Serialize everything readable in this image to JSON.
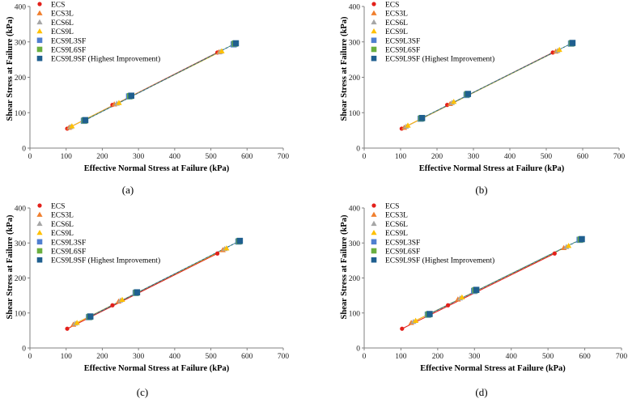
{
  "figure": {
    "panels": [
      "(a)",
      "(b)",
      "(c)",
      "(d)"
    ]
  },
  "colors": {
    "ECS": "#e3201b",
    "ECS3L": "#f07f2e",
    "ECS6L": "#a6a6a6",
    "ECS9L": "#ffc000",
    "ECS9L3SF": "#4f7fd0",
    "ECS9L6SF": "#6aaf3f",
    "ECS9L9SF": "#1f5f8f",
    "axis": "#808080",
    "text": "#000000"
  },
  "chart_data": [
    {
      "type": "scatter",
      "panel": "(a)",
      "title": "",
      "xlabel": "Effective Normal Stress at Failure (kPa)",
      "ylabel": "Shear Stress at Failure (kPa)",
      "xlim": [
        0,
        700
      ],
      "ylim": [
        0,
        400
      ],
      "xticks": [
        "0",
        "100",
        "200",
        "300",
        "400",
        "500",
        "600",
        "700"
      ],
      "yticks": [
        "0",
        "100",
        "200",
        "300",
        "400"
      ],
      "legend_position": "top-left",
      "series": [
        {
          "name": "ECS",
          "marker": "circle",
          "x": [
            103,
            228,
            518
          ],
          "y": [
            55,
            122,
            270
          ]
        },
        {
          "name": "ECS3L",
          "marker": "triangle",
          "x": [
            108,
            233,
            522
          ],
          "y": [
            58,
            124,
            271
          ]
        },
        {
          "name": "ECS6L",
          "marker": "triangle",
          "x": [
            112,
            240,
            526
          ],
          "y": [
            60,
            126,
            272
          ]
        },
        {
          "name": "ECS9L",
          "marker": "triangle",
          "x": [
            116,
            246,
            530
          ],
          "y": [
            62,
            128,
            274
          ]
        },
        {
          "name": "ECS9L3SF",
          "marker": "square",
          "x": [
            149,
            274,
            563
          ],
          "y": [
            77,
            146,
            293
          ]
        },
        {
          "name": "ECS9L6SF",
          "marker": "square",
          "x": [
            151,
            277,
            566
          ],
          "y": [
            78,
            147,
            295
          ]
        },
        {
          "name": "ECS9L9SF (Highest Improvement)",
          "marker": "square",
          "x": [
            153,
            280,
            569
          ],
          "y": [
            79,
            148,
            296
          ]
        }
      ]
    },
    {
      "type": "scatter",
      "panel": "(b)",
      "title": "",
      "xlabel": "Effective Normal Stress at Failure (kPa)",
      "ylabel": "Shear Stress at Failure (kPa)",
      "xlim": [
        0,
        700
      ],
      "ylim": [
        0,
        400
      ],
      "xticks": [
        "0",
        "100",
        "200",
        "300",
        "400",
        "500",
        "600",
        "700"
      ],
      "yticks": [
        "0",
        "100",
        "200",
        "300",
        "400"
      ],
      "legend_position": "top-left",
      "series": [
        {
          "name": "ECS",
          "marker": "circle",
          "x": [
            103,
            228,
            518
          ],
          "y": [
            55,
            122,
            270
          ]
        },
        {
          "name": "ECS3L",
          "marker": "triangle",
          "x": [
            110,
            236,
            526
          ],
          "y": [
            58,
            125,
            273
          ]
        },
        {
          "name": "ECS6L",
          "marker": "triangle",
          "x": [
            115,
            241,
            531
          ],
          "y": [
            61,
            128,
            275
          ]
        },
        {
          "name": "ECS9L",
          "marker": "triangle",
          "x": [
            120,
            246,
            536
          ],
          "y": [
            64,
            131,
            278
          ]
        },
        {
          "name": "ECS9L3SF",
          "marker": "square",
          "x": [
            155,
            281,
            568
          ],
          "y": [
            83,
            150,
            295
          ]
        },
        {
          "name": "ECS9L6SF",
          "marker": "square",
          "x": [
            157,
            283,
            570
          ],
          "y": [
            84,
            152,
            296
          ]
        },
        {
          "name": "ECS9L9SF (Highest Improvement)",
          "marker": "square",
          "x": [
            159,
            285,
            572
          ],
          "y": [
            85,
            153,
            297
          ]
        }
      ]
    },
    {
      "type": "scatter",
      "panel": "(c)",
      "title": "",
      "xlabel": "Effective Normal Stress at Failure (kPa)",
      "ylabel": "Shear Stress at Failure (kPa)",
      "xlim": [
        0,
        700
      ],
      "ylim": [
        0,
        400
      ],
      "xticks": [
        "0",
        "100",
        "200",
        "300",
        "400",
        "500",
        "600",
        "700"
      ],
      "yticks": [
        "0",
        "100",
        "200",
        "300",
        "400"
      ],
      "legend_position": "top-left",
      "series": [
        {
          "name": "ECS",
          "marker": "circle",
          "x": [
            103,
            228,
            518
          ],
          "y": [
            55,
            122,
            270
          ]
        },
        {
          "name": "ECS3L",
          "marker": "triangle",
          "x": [
            120,
            245,
            533
          ],
          "y": [
            67,
            133,
            280
          ]
        },
        {
          "name": "ECS6L",
          "marker": "triangle",
          "x": [
            125,
            250,
            538
          ],
          "y": [
            70,
            136,
            283
          ]
        },
        {
          "name": "ECS9L",
          "marker": "triangle",
          "x": [
            130,
            255,
            543
          ],
          "y": [
            72,
            138,
            285
          ]
        },
        {
          "name": "ECS9L3SF",
          "marker": "square",
          "x": [
            163,
            292,
            576
          ],
          "y": [
            88,
            157,
            304
          ]
        },
        {
          "name": "ECS9L6SF",
          "marker": "square",
          "x": [
            165,
            294,
            578
          ],
          "y": [
            89,
            158,
            305
          ]
        },
        {
          "name": "ECS9L9SF (Highest Improvement)",
          "marker": "square",
          "x": [
            167,
            296,
            580
          ],
          "y": [
            90,
            159,
            306
          ]
        }
      ]
    },
    {
      "type": "scatter",
      "panel": "(d)",
      "title": "",
      "xlabel": "Effective Normal Stress at Failure (kPa)",
      "ylabel": "Shear Stress at Failure (kPa)",
      "xlim": [
        0,
        700
      ],
      "ylim": [
        0,
        400
      ],
      "xticks": [
        "0",
        "100",
        "200",
        "300",
        "400",
        "500",
        "600",
        "700"
      ],
      "yticks": [
        "0",
        "100",
        "200",
        "300",
        "400"
      ],
      "legend_position": "top-left",
      "series": [
        {
          "name": "ECS",
          "marker": "circle",
          "x": [
            103,
            228,
            518
          ],
          "y": [
            55,
            122,
            270
          ]
        },
        {
          "name": "ECS3L",
          "marker": "triangle",
          "x": [
            128,
            255,
            543
          ],
          "y": [
            72,
            139,
            286
          ]
        },
        {
          "name": "ECS6L",
          "marker": "triangle",
          "x": [
            134,
            261,
            550
          ],
          "y": [
            75,
            142,
            289
          ]
        },
        {
          "name": "ECS9L",
          "marker": "triangle",
          "x": [
            140,
            266,
            556
          ],
          "y": [
            78,
            145,
            292
          ]
        },
        {
          "name": "ECS9L3SF",
          "marker": "square",
          "x": [
            173,
            299,
            586
          ],
          "y": [
            95,
            163,
            309
          ]
        },
        {
          "name": "ECS9L6SF",
          "marker": "square",
          "x": [
            175,
            302,
            589
          ],
          "y": [
            96,
            165,
            310
          ]
        },
        {
          "name": "ECS9L9SF (Highest Improvement)",
          "marker": "square",
          "x": [
            178,
            305,
            592
          ],
          "y": [
            97,
            166,
            311
          ]
        }
      ]
    }
  ]
}
